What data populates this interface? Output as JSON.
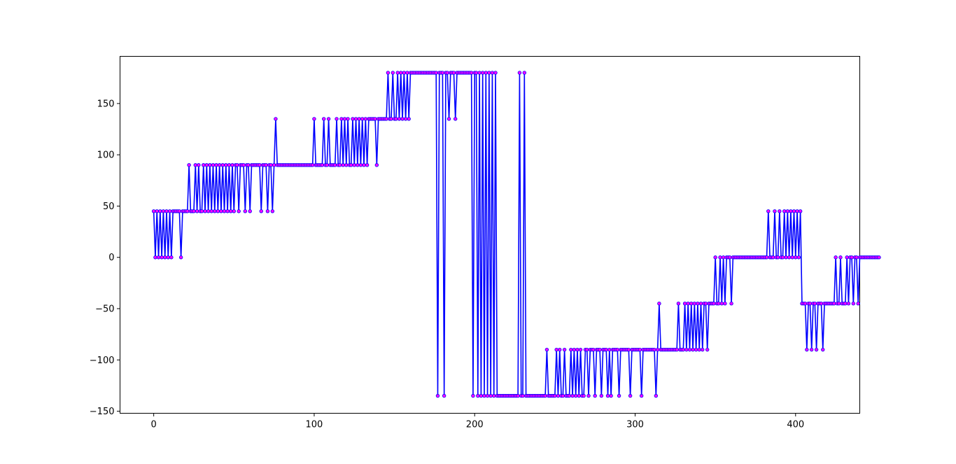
{
  "colors": {
    "line": "#0000ff",
    "marker_fill": "#ff00ff",
    "marker_edge": "#0000ff",
    "axes": "#000000",
    "background": "#ffffff"
  },
  "chart_data": {
    "type": "line",
    "title": "",
    "xlabel": "",
    "ylabel": "",
    "xlim": [
      -21,
      440
    ],
    "ylim": [
      -152,
      196
    ],
    "xticks": [
      0,
      100,
      200,
      300,
      400
    ],
    "xtick_labels": [
      "0",
      "100",
      "200",
      "300",
      "400"
    ],
    "yticks": [
      -150,
      -100,
      -50,
      0,
      50,
      100,
      150
    ],
    "ytick_labels": [
      "−150",
      "−100",
      "−50",
      "0",
      "50",
      "100",
      "150"
    ],
    "grid": false,
    "legend": "none",
    "markers": "circle",
    "series": [
      {
        "x_start": 0,
        "x_step": 1,
        "values": [
          45,
          0,
          45,
          0,
          45,
          0,
          45,
          0,
          45,
          0,
          45,
          0,
          45,
          45,
          45,
          45,
          45,
          0,
          45,
          45,
          45,
          45,
          90,
          45,
          45,
          45,
          90,
          45,
          90,
          45,
          45,
          90,
          45,
          90,
          45,
          90,
          45,
          90,
          45,
          90,
          45,
          90,
          45,
          90,
          45,
          90,
          45,
          90,
          45,
          90,
          45,
          90,
          90,
          45,
          90,
          90,
          90,
          45,
          90,
          90,
          45,
          90,
          90,
          90,
          90,
          90,
          90,
          45,
          90,
          90,
          90,
          45,
          90,
          90,
          45,
          90,
          135,
          90,
          90,
          90,
          90,
          90,
          90,
          90,
          90,
          90,
          90,
          90,
          90,
          90,
          90,
          90,
          90,
          90,
          90,
          90,
          90,
          90,
          90,
          90,
          135,
          90,
          90,
          90,
          90,
          90,
          135,
          90,
          90,
          135,
          90,
          90,
          90,
          90,
          135,
          90,
          90,
          135,
          90,
          135,
          90,
          135,
          90,
          90,
          135,
          90,
          135,
          90,
          135,
          90,
          135,
          90,
          135,
          90,
          135,
          135,
          135,
          135,
          135,
          90,
          135,
          135,
          135,
          135,
          135,
          135,
          180,
          135,
          135,
          180,
          135,
          135,
          180,
          135,
          180,
          135,
          180,
          135,
          180,
          135,
          180,
          180,
          180,
          180,
          180,
          180,
          180,
          180,
          180,
          180,
          180,
          180,
          180,
          180,
          180,
          180,
          180,
          -135,
          180,
          180,
          180,
          -135,
          180,
          180,
          135,
          180,
          180,
          180,
          135,
          180,
          180,
          180,
          180,
          180,
          180,
          180,
          180,
          180,
          180,
          -135,
          180,
          180,
          -135,
          180,
          -135,
          180,
          -135,
          180,
          -135,
          180,
          -135,
          180,
          -135,
          180,
          -135,
          -135,
          -135,
          -135,
          -135,
          -135,
          -135,
          -135,
          -135,
          -135,
          -135,
          -135,
          -135,
          -135,
          180,
          -135,
          -135,
          180,
          -135,
          -135,
          -135,
          -135,
          -135,
          -135,
          -135,
          -135,
          -135,
          -135,
          -135,
          -135,
          -135,
          -90,
          -135,
          -135,
          -135,
          -135,
          -135,
          -90,
          -135,
          -90,
          -135,
          -135,
          -90,
          -135,
          -135,
          -135,
          -90,
          -135,
          -90,
          -135,
          -90,
          -135,
          -90,
          -135,
          -135,
          -90,
          -90,
          -135,
          -90,
          -90,
          -90,
          -135,
          -90,
          -90,
          -90,
          -135,
          -90,
          -90,
          -90,
          -135,
          -90,
          -135,
          -90,
          -90,
          -90,
          -90,
          -135,
          -90,
          -90,
          -90,
          -90,
          -90,
          -90,
          -135,
          -90,
          -90,
          -90,
          -90,
          -90,
          -90,
          -135,
          -90,
          -90,
          -90,
          -90,
          -90,
          -90,
          -90,
          -90,
          -135,
          -90,
          -45,
          -90,
          -90,
          -90,
          -90,
          -90,
          -90,
          -90,
          -90,
          -90,
          -90,
          -90,
          -45,
          -90,
          -90,
          -90,
          -45,
          -90,
          -45,
          -90,
          -45,
          -90,
          -45,
          -90,
          -45,
          -90,
          -45,
          -90,
          -45,
          -45,
          -90,
          -45,
          -45,
          -45,
          -45,
          0,
          -45,
          -45,
          0,
          -45,
          0,
          -45,
          0,
          0,
          0,
          -45,
          0,
          0,
          0,
          0,
          0,
          0,
          0,
          0,
          0,
          0,
          0,
          0,
          0,
          0,
          0,
          0,
          0,
          0,
          0,
          0,
          0,
          0,
          45,
          0,
          0,
          0,
          45,
          0,
          0,
          45,
          0,
          0,
          45,
          0,
          45,
          0,
          45,
          0,
          45,
          0,
          45,
          0,
          45,
          -45,
          -45,
          -45,
          -90,
          -45,
          -45,
          -90,
          -45,
          -45,
          -90,
          -45,
          -45,
          -45,
          -90,
          -45,
          -45,
          -45,
          -45,
          -45,
          -45,
          -45,
          0,
          -45,
          -45,
          0,
          -45,
          -45,
          -45,
          0,
          -45,
          0,
          0,
          -45,
          0,
          0,
          -45,
          0,
          0,
          0,
          0,
          0,
          0,
          0,
          0,
          0,
          0,
          0,
          0,
          0
        ]
      }
    ]
  }
}
